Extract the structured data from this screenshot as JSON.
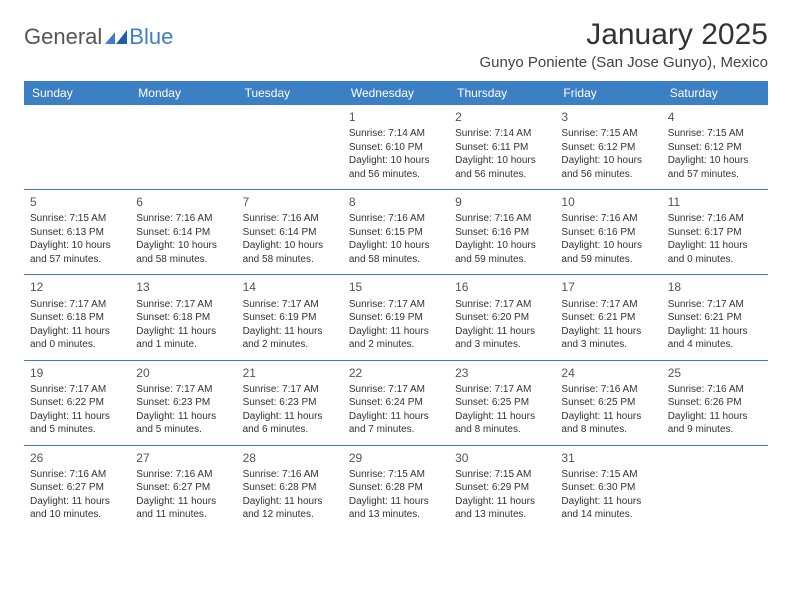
{
  "logo": {
    "part1": "General",
    "part2": "Blue"
  },
  "title": "January 2025",
  "subtitle": "Gunyo Poniente (San Jose Gunyo), Mexico",
  "colors": {
    "header_bg": "#3b7fc4",
    "header_text": "#ffffff",
    "body_bg": "#ffffff",
    "text": "#333333",
    "rule": "#3b7fc4"
  },
  "typography": {
    "title_fontsize": 30,
    "subtitle_fontsize": 15,
    "header_cell_fontsize": 12,
    "daynum_fontsize": 12,
    "body_fontsize": 10
  },
  "day_headers": [
    "Sunday",
    "Monday",
    "Tuesday",
    "Wednesday",
    "Thursday",
    "Friday",
    "Saturday"
  ],
  "weeks": [
    [
      {
        "n": "",
        "sunrise": "",
        "sunset": "",
        "daylight": ""
      },
      {
        "n": "",
        "sunrise": "",
        "sunset": "",
        "daylight": ""
      },
      {
        "n": "",
        "sunrise": "",
        "sunset": "",
        "daylight": ""
      },
      {
        "n": "1",
        "sunrise": "Sunrise: 7:14 AM",
        "sunset": "Sunset: 6:10 PM",
        "daylight": "Daylight: 10 hours and 56 minutes."
      },
      {
        "n": "2",
        "sunrise": "Sunrise: 7:14 AM",
        "sunset": "Sunset: 6:11 PM",
        "daylight": "Daylight: 10 hours and 56 minutes."
      },
      {
        "n": "3",
        "sunrise": "Sunrise: 7:15 AM",
        "sunset": "Sunset: 6:12 PM",
        "daylight": "Daylight: 10 hours and 56 minutes."
      },
      {
        "n": "4",
        "sunrise": "Sunrise: 7:15 AM",
        "sunset": "Sunset: 6:12 PM",
        "daylight": "Daylight: 10 hours and 57 minutes."
      }
    ],
    [
      {
        "n": "5",
        "sunrise": "Sunrise: 7:15 AM",
        "sunset": "Sunset: 6:13 PM",
        "daylight": "Daylight: 10 hours and 57 minutes."
      },
      {
        "n": "6",
        "sunrise": "Sunrise: 7:16 AM",
        "sunset": "Sunset: 6:14 PM",
        "daylight": "Daylight: 10 hours and 58 minutes."
      },
      {
        "n": "7",
        "sunrise": "Sunrise: 7:16 AM",
        "sunset": "Sunset: 6:14 PM",
        "daylight": "Daylight: 10 hours and 58 minutes."
      },
      {
        "n": "8",
        "sunrise": "Sunrise: 7:16 AM",
        "sunset": "Sunset: 6:15 PM",
        "daylight": "Daylight: 10 hours and 58 minutes."
      },
      {
        "n": "9",
        "sunrise": "Sunrise: 7:16 AM",
        "sunset": "Sunset: 6:16 PM",
        "daylight": "Daylight: 10 hours and 59 minutes."
      },
      {
        "n": "10",
        "sunrise": "Sunrise: 7:16 AM",
        "sunset": "Sunset: 6:16 PM",
        "daylight": "Daylight: 10 hours and 59 minutes."
      },
      {
        "n": "11",
        "sunrise": "Sunrise: 7:16 AM",
        "sunset": "Sunset: 6:17 PM",
        "daylight": "Daylight: 11 hours and 0 minutes."
      }
    ],
    [
      {
        "n": "12",
        "sunrise": "Sunrise: 7:17 AM",
        "sunset": "Sunset: 6:18 PM",
        "daylight": "Daylight: 11 hours and 0 minutes."
      },
      {
        "n": "13",
        "sunrise": "Sunrise: 7:17 AM",
        "sunset": "Sunset: 6:18 PM",
        "daylight": "Daylight: 11 hours and 1 minute."
      },
      {
        "n": "14",
        "sunrise": "Sunrise: 7:17 AM",
        "sunset": "Sunset: 6:19 PM",
        "daylight": "Daylight: 11 hours and 2 minutes."
      },
      {
        "n": "15",
        "sunrise": "Sunrise: 7:17 AM",
        "sunset": "Sunset: 6:19 PM",
        "daylight": "Daylight: 11 hours and 2 minutes."
      },
      {
        "n": "16",
        "sunrise": "Sunrise: 7:17 AM",
        "sunset": "Sunset: 6:20 PM",
        "daylight": "Daylight: 11 hours and 3 minutes."
      },
      {
        "n": "17",
        "sunrise": "Sunrise: 7:17 AM",
        "sunset": "Sunset: 6:21 PM",
        "daylight": "Daylight: 11 hours and 3 minutes."
      },
      {
        "n": "18",
        "sunrise": "Sunrise: 7:17 AM",
        "sunset": "Sunset: 6:21 PM",
        "daylight": "Daylight: 11 hours and 4 minutes."
      }
    ],
    [
      {
        "n": "19",
        "sunrise": "Sunrise: 7:17 AM",
        "sunset": "Sunset: 6:22 PM",
        "daylight": "Daylight: 11 hours and 5 minutes."
      },
      {
        "n": "20",
        "sunrise": "Sunrise: 7:17 AM",
        "sunset": "Sunset: 6:23 PM",
        "daylight": "Daylight: 11 hours and 5 minutes."
      },
      {
        "n": "21",
        "sunrise": "Sunrise: 7:17 AM",
        "sunset": "Sunset: 6:23 PM",
        "daylight": "Daylight: 11 hours and 6 minutes."
      },
      {
        "n": "22",
        "sunrise": "Sunrise: 7:17 AM",
        "sunset": "Sunset: 6:24 PM",
        "daylight": "Daylight: 11 hours and 7 minutes."
      },
      {
        "n": "23",
        "sunrise": "Sunrise: 7:17 AM",
        "sunset": "Sunset: 6:25 PM",
        "daylight": "Daylight: 11 hours and 8 minutes."
      },
      {
        "n": "24",
        "sunrise": "Sunrise: 7:16 AM",
        "sunset": "Sunset: 6:25 PM",
        "daylight": "Daylight: 11 hours and 8 minutes."
      },
      {
        "n": "25",
        "sunrise": "Sunrise: 7:16 AM",
        "sunset": "Sunset: 6:26 PM",
        "daylight": "Daylight: 11 hours and 9 minutes."
      }
    ],
    [
      {
        "n": "26",
        "sunrise": "Sunrise: 7:16 AM",
        "sunset": "Sunset: 6:27 PM",
        "daylight": "Daylight: 11 hours and 10 minutes."
      },
      {
        "n": "27",
        "sunrise": "Sunrise: 7:16 AM",
        "sunset": "Sunset: 6:27 PM",
        "daylight": "Daylight: 11 hours and 11 minutes."
      },
      {
        "n": "28",
        "sunrise": "Sunrise: 7:16 AM",
        "sunset": "Sunset: 6:28 PM",
        "daylight": "Daylight: 11 hours and 12 minutes."
      },
      {
        "n": "29",
        "sunrise": "Sunrise: 7:15 AM",
        "sunset": "Sunset: 6:28 PM",
        "daylight": "Daylight: 11 hours and 13 minutes."
      },
      {
        "n": "30",
        "sunrise": "Sunrise: 7:15 AM",
        "sunset": "Sunset: 6:29 PM",
        "daylight": "Daylight: 11 hours and 13 minutes."
      },
      {
        "n": "31",
        "sunrise": "Sunrise: 7:15 AM",
        "sunset": "Sunset: 6:30 PM",
        "daylight": "Daylight: 11 hours and 14 minutes."
      },
      {
        "n": "",
        "sunrise": "",
        "sunset": "",
        "daylight": ""
      }
    ]
  ]
}
